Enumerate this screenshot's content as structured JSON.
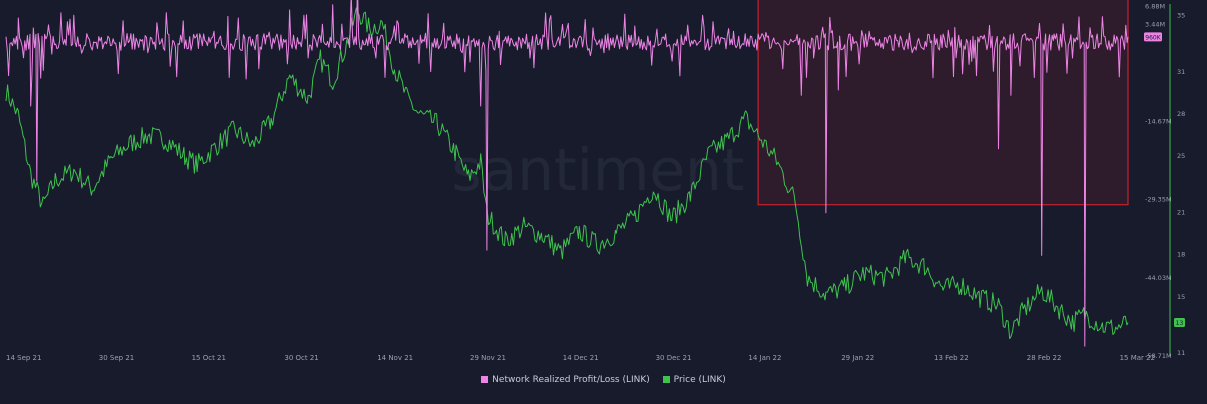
{
  "chart_data": {
    "type": "line",
    "watermark": "santiment",
    "x_ticks": [
      "14 Sep 21",
      "30 Sep 21",
      "15 Oct 21",
      "30 Oct 21",
      "14 Nov 21",
      "29 Nov 21",
      "14 Dec 21",
      "30 Dec 21",
      "14 Jan 22",
      "29 Jan 22",
      "13 Feb 22",
      "28 Feb 22",
      "15 Mar 22"
    ],
    "x_range": [
      "2021-09-14",
      "2022-03-15"
    ],
    "y_left": {
      "series": "Network Realized Profit/Loss (LINK)",
      "ticks": [
        "6.88M",
        "3.44M",
        "-14.67M",
        "-29.35M",
        "-44.03M",
        "-58.71M"
      ],
      "current_label": "960K"
    },
    "y_right": {
      "series": "Price (LINK)",
      "ticks": [
        "35",
        "31",
        "28",
        "25",
        "21",
        "18",
        "15",
        "11"
      ],
      "ylim": [
        11,
        35
      ],
      "current_label": "13"
    },
    "series": [
      {
        "name": "Network Realized Profit/Loss (LINK)",
        "color": "#ec84e4",
        "unit": "M",
        "points": [
          [
            "2021-09-14",
            1.0
          ],
          [
            "2021-09-16",
            4.5
          ],
          [
            "2021-09-18",
            -12.0
          ],
          [
            "2021-09-19",
            -26.0
          ],
          [
            "2021-09-21",
            2.0
          ],
          [
            "2021-09-25",
            5.0
          ],
          [
            "2021-09-28",
            -1.5
          ],
          [
            "2021-10-03",
            4.0
          ],
          [
            "2021-10-07",
            -2.0
          ],
          [
            "2021-10-10",
            5.5
          ],
          [
            "2021-10-15",
            1.5
          ],
          [
            "2021-10-20",
            4.8
          ],
          [
            "2021-10-25",
            -5.0
          ],
          [
            "2021-10-30",
            6.0
          ],
          [
            "2021-11-02",
            -3.0
          ],
          [
            "2021-11-06",
            7.0
          ],
          [
            "2021-11-09",
            9.0
          ],
          [
            "2021-11-10",
            11.0
          ],
          [
            "2021-11-13",
            -3.0
          ],
          [
            "2021-11-16",
            3.0
          ],
          [
            "2021-11-20",
            -4.0
          ],
          [
            "2021-11-24",
            3.5
          ],
          [
            "2021-11-27",
            -2.0
          ],
          [
            "2021-11-30",
            -12.0
          ],
          [
            "2021-12-01",
            -39.0
          ],
          [
            "2021-12-03",
            2.0
          ],
          [
            "2021-12-08",
            -3.0
          ],
          [
            "2021-12-14",
            2.5
          ],
          [
            "2021-12-20",
            -2.0
          ],
          [
            "2021-12-25",
            3.0
          ],
          [
            "2021-12-30",
            1.5
          ],
          [
            "2022-01-05",
            5.0
          ],
          [
            "2022-01-10",
            2.0
          ],
          [
            "2022-01-14",
            1.5
          ],
          [
            "2022-01-18",
            -5.0
          ],
          [
            "2022-01-21",
            -10.0
          ],
          [
            "2022-01-23",
            -3.0
          ],
          [
            "2022-01-25",
            -32.0
          ],
          [
            "2022-01-27",
            -9.0
          ],
          [
            "2022-02-01",
            2.0
          ],
          [
            "2022-02-08",
            -2.0
          ],
          [
            "2022-02-13",
            1.5
          ],
          [
            "2022-02-18",
            -3.0
          ],
          [
            "2022-02-22",
            -20.0
          ],
          [
            "2022-02-24",
            -10.0
          ],
          [
            "2022-03-01",
            -40.0
          ],
          [
            "2022-03-03",
            1.5
          ],
          [
            "2022-03-06",
            -3.0
          ],
          [
            "2022-03-08",
            -57.0
          ],
          [
            "2022-03-10",
            1.5
          ],
          [
            "2022-03-15",
            0.96
          ]
        ]
      },
      {
        "name": "Price (LINK)",
        "color": "#3fc24e",
        "unit": "USD",
        "points": [
          [
            "2021-09-14",
            29.6
          ],
          [
            "2021-09-16",
            27.8
          ],
          [
            "2021-09-18",
            23.6
          ],
          [
            "2021-09-20",
            21.4
          ],
          [
            "2021-09-22",
            23.2
          ],
          [
            "2021-09-25",
            23.9
          ],
          [
            "2021-09-28",
            22.6
          ],
          [
            "2021-10-01",
            24.7
          ],
          [
            "2021-10-04",
            25.8
          ],
          [
            "2021-10-07",
            26.4
          ],
          [
            "2021-10-10",
            26.1
          ],
          [
            "2021-10-13",
            24.9
          ],
          [
            "2021-10-15",
            24.3
          ],
          [
            "2021-10-18",
            25.6
          ],
          [
            "2021-10-21",
            26.8
          ],
          [
            "2021-10-24",
            25.7
          ],
          [
            "2021-10-27",
            27.4
          ],
          [
            "2021-10-30",
            30.6
          ],
          [
            "2021-11-02",
            29.0
          ],
          [
            "2021-11-04",
            31.8
          ],
          [
            "2021-11-06",
            30.3
          ],
          [
            "2021-11-08",
            32.6
          ],
          [
            "2021-11-10",
            35.3
          ],
          [
            "2021-11-12",
            34.0
          ],
          [
            "2021-11-14",
            34.4
          ],
          [
            "2021-11-16",
            31.2
          ],
          [
            "2021-11-18",
            29.1
          ],
          [
            "2021-11-20",
            27.9
          ],
          [
            "2021-11-23",
            27.2
          ],
          [
            "2021-11-26",
            25.1
          ],
          [
            "2021-11-28",
            23.4
          ],
          [
            "2021-11-30",
            24.5
          ],
          [
            "2021-12-01",
            20.8
          ],
          [
            "2021-12-04",
            18.9
          ],
          [
            "2021-12-07",
            19.9
          ],
          [
            "2021-12-10",
            19.3
          ],
          [
            "2021-12-13",
            18.1
          ],
          [
            "2021-12-16",
            19.6
          ],
          [
            "2021-12-19",
            18.6
          ],
          [
            "2021-12-22",
            19.5
          ],
          [
            "2021-12-25",
            20.6
          ],
          [
            "2021-12-28",
            22.6
          ],
          [
            "2021-12-31",
            20.5
          ],
          [
            "2022-01-03",
            22.1
          ],
          [
            "2022-01-06",
            25.1
          ],
          [
            "2022-01-09",
            26.1
          ],
          [
            "2022-01-12",
            27.6
          ],
          [
            "2022-01-14",
            26.4
          ],
          [
            "2022-01-17",
            24.6
          ],
          [
            "2022-01-20",
            21.8
          ],
          [
            "2022-01-22",
            16.3
          ],
          [
            "2022-01-25",
            15.1
          ],
          [
            "2022-01-28",
            15.6
          ],
          [
            "2022-01-31",
            16.6
          ],
          [
            "2022-02-04",
            16.3
          ],
          [
            "2022-02-07",
            17.7
          ],
          [
            "2022-02-10",
            17.1
          ],
          [
            "2022-02-13",
            15.5
          ],
          [
            "2022-02-16",
            15.8
          ],
          [
            "2022-02-19",
            14.9
          ],
          [
            "2022-02-22",
            14.3
          ],
          [
            "2022-02-24",
            12.4
          ],
          [
            "2022-02-26",
            13.9
          ],
          [
            "2022-03-01",
            15.4
          ],
          [
            "2022-03-04",
            14.0
          ],
          [
            "2022-03-06",
            13.1
          ],
          [
            "2022-03-08",
            13.7
          ],
          [
            "2022-03-11",
            12.8
          ],
          [
            "2022-03-13",
            12.7
          ],
          [
            "2022-03-15",
            13.1
          ]
        ]
      }
    ],
    "highlight_region": {
      "from": "2022-01-14",
      "to": "2022-03-15",
      "y_from": -30.5,
      "y_to": 11.0,
      "color": "#c8202f"
    },
    "legend": {
      "placement": "bottom-center",
      "entries": [
        "Network Realized Profit/Loss (LINK)",
        "Price (LINK)"
      ]
    },
    "grid": false
  }
}
